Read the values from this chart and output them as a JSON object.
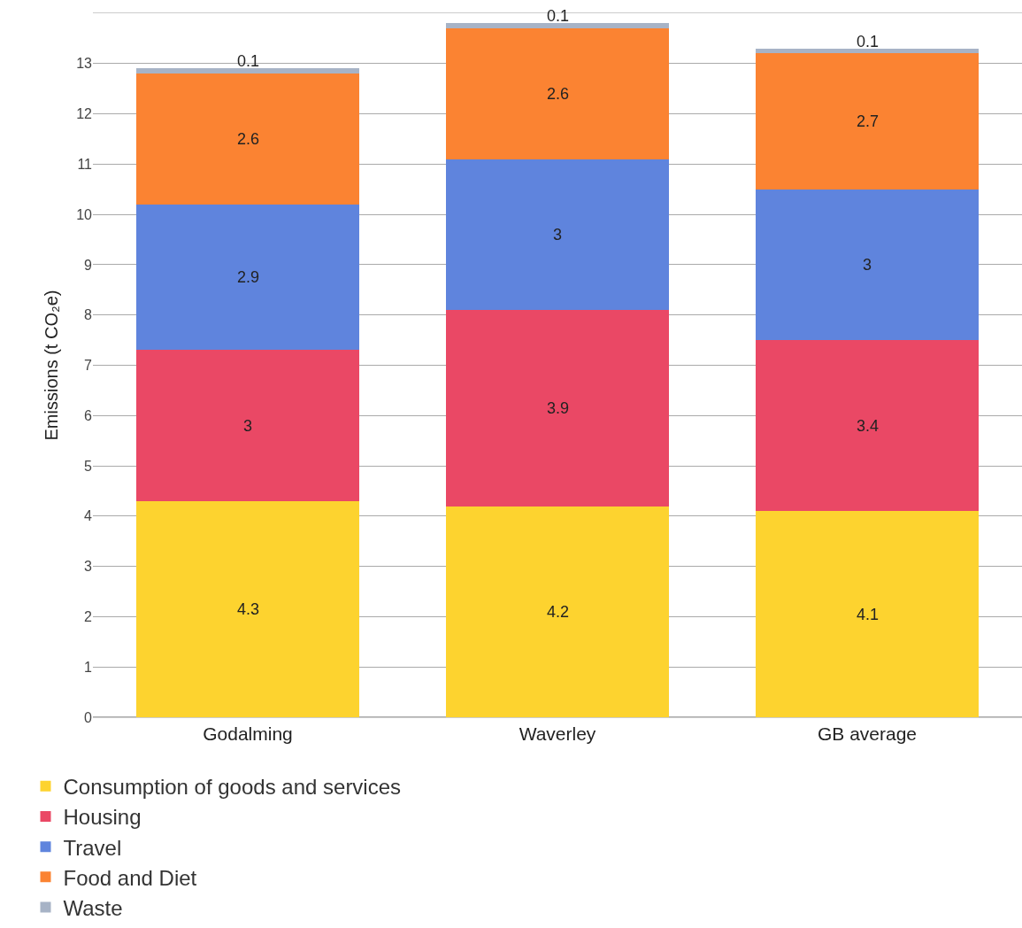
{
  "chart_data": {
    "type": "bar",
    "stacked": true,
    "ylabel": "Emissions (t CO₂e)",
    "categories": [
      "Godalming",
      "Waverley",
      "GB average"
    ],
    "series": [
      {
        "name": "Consumption of goods and services",
        "color": "#fdd32f",
        "values": [
          4.3,
          4.2,
          4.1
        ]
      },
      {
        "name": "Housing",
        "color": "#ea4865",
        "values": [
          3,
          3.9,
          3.4
        ]
      },
      {
        "name": "Travel",
        "color": "#5f84dd",
        "values": [
          2.9,
          3,
          3
        ]
      },
      {
        "name": "Food and Diet",
        "color": "#fb8332",
        "values": [
          2.6,
          2.6,
          2.7
        ]
      },
      {
        "name": "Waste",
        "color": "#a7b3c6",
        "values": [
          0.1,
          0.1,
          0.1
        ]
      }
    ],
    "ylim": [
      0,
      14
    ],
    "yticks": [
      0,
      1,
      2,
      3,
      4,
      5,
      6,
      7,
      8,
      9,
      10,
      11,
      12,
      13
    ],
    "grid": "y",
    "legend": "bottom left",
    "data_labels": true
  }
}
